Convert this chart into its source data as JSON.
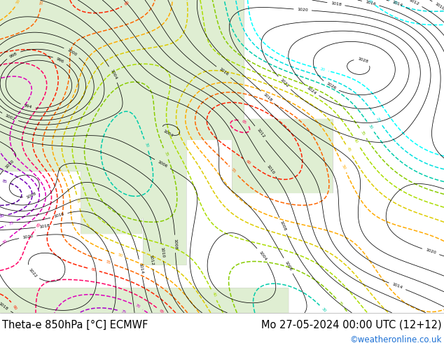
{
  "title_left": "Theta-e 850hPa [°C] ECMWF",
  "title_right": "Mo 27-05-2024 00:00 UTC (12+12)",
  "copyright": "©weatheronline.co.uk",
  "bg_color": "#ffffff",
  "title_fontsize": 10.5,
  "copyright_color": "#1a6fd4",
  "title_color": "#000000",
  "fig_width": 6.34,
  "fig_height": 4.9,
  "dpi": 100,
  "theta_colors": {
    "20": "#00ffff",
    "25": "#00e0e0",
    "30": "#00ccaa",
    "35": "#88cc00",
    "40": "#aadd00",
    "45": "#ddcc00",
    "50": "#ffaa00",
    "55": "#ff6600",
    "60": "#ff2200",
    "65": "#ff0066",
    "70": "#dd00bb",
    "75": "#aa00cc",
    "80": "#7700bb",
    "85": "#550099"
  },
  "pressure_color": "#000000",
  "land_color": "#c8ddb0",
  "sea_color": "#f0f0f0",
  "map_bg": "#f8f8f8"
}
